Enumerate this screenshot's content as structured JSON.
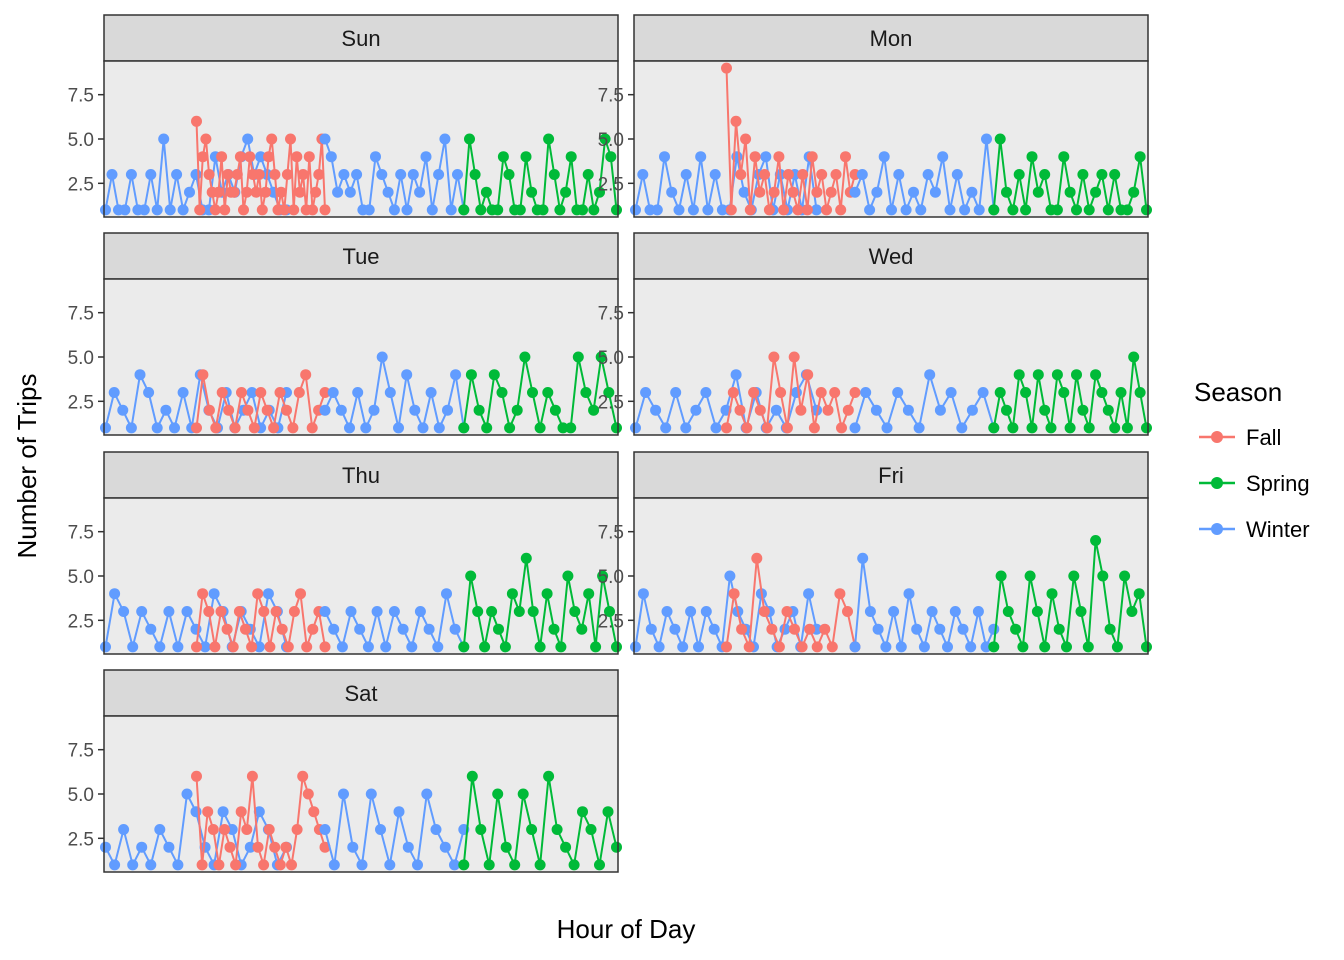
{
  "chart_data": {
    "type": "line",
    "facet_by": "day",
    "xlabel": "Hour of Day",
    "ylabel": "Number of Trips",
    "legend": {
      "title": "Season",
      "placement": "right"
    },
    "y_ticks": [
      "2.5",
      "5.0",
      "7.5"
    ],
    "ylim": [
      0.6,
      9.4
    ],
    "series_colors": {
      "Fall": "#F8766D",
      "Spring": "#00BA38",
      "Winter": "#619CFF"
    },
    "series_order": [
      "Fall",
      "Spring",
      "Winter"
    ],
    "panels": [
      {
        "name": "Sun",
        "series": [
          {
            "name": "Winter",
            "values": [
              1,
              3,
              1,
              1,
              3,
              1,
              1,
              3,
              1,
              5,
              1,
              3,
              1,
              2,
              3,
              1,
              1,
              4,
              2,
              3,
              2,
              4,
              5,
              3,
              4,
              3,
              2,
              1,
              1,
              5,
              4,
              2,
              3,
              2,
              3,
              1,
              1,
              4,
              3,
              2,
              1,
              3,
              1,
              3,
              2,
              4,
              1,
              3,
              5,
              1,
              3,
              1
            ]
          },
          {
            "name": "Fall",
            "values": [
              6,
              1,
              4,
              5,
              3,
              2,
              1,
              2,
              4,
              1,
              3,
              2,
              2,
              3,
              4,
              1,
              2,
              4,
              3,
              2,
              3,
              1,
              2,
              4,
              5,
              3,
              1,
              2,
              1,
              3,
              5,
              1,
              4,
              2,
              3,
              1,
              4,
              1,
              2,
              3,
              5,
              1
            ]
          },
          {
            "name": "Spring",
            "values": [
              1,
              5,
              3,
              1,
              2,
              1,
              1,
              4,
              3,
              1,
              1,
              4,
              2,
              1,
              1,
              5,
              3,
              1,
              2,
              4,
              1,
              1,
              3,
              1,
              2,
              5,
              4,
              1
            ]
          }
        ]
      },
      {
        "name": "Mon",
        "series": [
          {
            "name": "Winter",
            "values": [
              1,
              3,
              1,
              1,
              4,
              2,
              1,
              3,
              1,
              4,
              1,
              3,
              1,
              1,
              4,
              2,
              1,
              3,
              4,
              1,
              3,
              1,
              3,
              1,
              4,
              1,
              2,
              3,
              1,
              2,
              4,
              1,
              3,
              1,
              2,
              1,
              3,
              2,
              4,
              1,
              3,
              1,
              2,
              1,
              5,
              1
            ]
          },
          {
            "name": "Fall",
            "values": [
              9,
              1,
              6,
              3,
              5,
              1,
              4,
              2,
              3,
              1,
              2,
              4,
              1,
              3,
              2,
              1,
              3,
              1,
              4,
              2,
              3,
              1,
              2,
              3,
              1,
              4,
              2,
              3
            ]
          },
          {
            "name": "Spring",
            "values": [
              1,
              5,
              2,
              1,
              3,
              1,
              4,
              2,
              3,
              1,
              1,
              4,
              2,
              1,
              3,
              1,
              2,
              3,
              1,
              3,
              1,
              1,
              2,
              4,
              1
            ]
          }
        ]
      },
      {
        "name": "Tue",
        "series": [
          {
            "name": "Winter",
            "values": [
              1,
              3,
              2,
              1,
              4,
              3,
              1,
              2,
              1,
              3,
              1,
              4,
              2,
              1,
              3,
              1,
              2,
              3,
              1,
              2,
              1,
              3,
              2,
              3,
              2,
              1,
              3,
              1,
              2,
              5,
              3,
              1,
              4,
              2,
              1,
              3,
              1,
              2,
              4,
              1
            ]
          },
          {
            "name": "Fall",
            "values": [
              1,
              4,
              2,
              1,
              3,
              2,
              1,
              3,
              2,
              1,
              3,
              2,
              1,
              3,
              2,
              1,
              3,
              4,
              1,
              2,
              3
            ]
          },
          {
            "name": "Spring",
            "values": [
              1,
              4,
              2,
              1,
              4,
              3,
              1,
              2,
              5,
              3,
              1,
              3,
              2,
              1,
              1,
              5,
              3,
              2,
              5,
              3,
              1
            ]
          }
        ]
      },
      {
        "name": "Wed",
        "series": [
          {
            "name": "Winter",
            "values": [
              1,
              3,
              2,
              1,
              3,
              1,
              2,
              3,
              1,
              2,
              4,
              1,
              3,
              1,
              2,
              1,
              3,
              4,
              2,
              1,
              3,
              2,
              1,
              3,
              2,
              1,
              4,
              2,
              3,
              1,
              2,
              3,
              1
            ]
          },
          {
            "name": "Fall",
            "values": [
              1,
              3,
              2,
              1,
              3,
              2,
              1,
              5,
              3,
              1,
              5,
              2,
              4,
              1,
              3,
              2,
              3,
              1,
              2,
              3
            ]
          },
          {
            "name": "Spring",
            "values": [
              1,
              3,
              2,
              1,
              4,
              3,
              1,
              4,
              2,
              1,
              4,
              3,
              1,
              4,
              2,
              1,
              4,
              3,
              2,
              1,
              3,
              1,
              5,
              3,
              1
            ]
          }
        ]
      },
      {
        "name": "Thu",
        "series": [
          {
            "name": "Winter",
            "values": [
              1,
              4,
              3,
              1,
              3,
              2,
              1,
              3,
              1,
              3,
              2,
              1,
              4,
              3,
              1,
              3,
              2,
              1,
              4,
              3,
              1,
              3,
              2,
              1,
              3,
              2,
              1,
              3,
              1,
              3,
              2,
              1,
              3,
              2,
              1,
              4,
              2,
              1
            ]
          },
          {
            "name": "Fall",
            "values": [
              1,
              4,
              3,
              1,
              3,
              2,
              1,
              3,
              2,
              1,
              4,
              3,
              1,
              3,
              2,
              1,
              3,
              4,
              1,
              2,
              3,
              1
            ]
          },
          {
            "name": "Spring",
            "values": [
              1,
              5,
              3,
              1,
              3,
              2,
              1,
              4,
              3,
              6,
              3,
              1,
              4,
              2,
              1,
              5,
              3,
              2,
              4,
              1,
              5,
              3,
              1
            ]
          }
        ]
      },
      {
        "name": "Fri",
        "series": [
          {
            "name": "Winter",
            "values": [
              1,
              4,
              2,
              1,
              3,
              2,
              1,
              3,
              1,
              3,
              2,
              1,
              5,
              3,
              2,
              1,
              4,
              3,
              1,
              2,
              3,
              1,
              4,
              2,
              1,
              6,
              3,
              2,
              1,
              3,
              1,
              4,
              2,
              1,
              3,
              2,
              1,
              3,
              2,
              1,
              3,
              1,
              2
            ]
          },
          {
            "name": "Fall",
            "values": [
              1,
              4,
              2,
              1,
              6,
              3,
              2,
              1,
              3,
              2,
              1,
              2,
              1,
              2,
              1,
              4,
              3,
              1
            ]
          },
          {
            "name": "Spring",
            "values": [
              1,
              5,
              3,
              2,
              1,
              5,
              3,
              1,
              4,
              2,
              1,
              5,
              3,
              1,
              7,
              5,
              2,
              1,
              5,
              3,
              4,
              1
            ]
          }
        ]
      },
      {
        "name": "Sat",
        "series": [
          {
            "name": "Winter",
            "values": [
              2,
              1,
              3,
              1,
              2,
              1,
              3,
              2,
              1,
              5,
              4,
              2,
              1,
              4,
              3,
              1,
              2,
              4,
              3,
              1,
              2,
              3,
              1,
              5,
              2,
              1,
              5,
              3,
              1,
              4,
              2,
              1,
              5,
              3,
              2,
              1,
              3
            ]
          },
          {
            "name": "Fall",
            "values": [
              6,
              1,
              4,
              3,
              1,
              3,
              2,
              1,
              4,
              3,
              6,
              2,
              1,
              3,
              2,
              1,
              2,
              1,
              3,
              6,
              5,
              4,
              3,
              2
            ]
          },
          {
            "name": "Spring",
            "values": [
              1,
              6,
              3,
              1,
              5,
              2,
              1,
              5,
              3,
              1,
              6,
              3,
              2,
              1,
              4,
              3,
              1,
              4,
              2
            ]
          }
        ]
      }
    ]
  }
}
